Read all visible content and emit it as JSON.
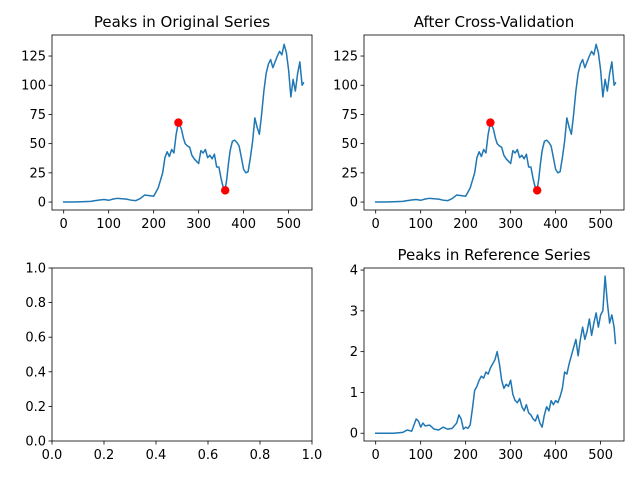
{
  "colors": {
    "series": "#1f77b4",
    "marker": "#ff0000",
    "axes": "#000000",
    "background": "#ffffff"
  },
  "chart_data": [
    {
      "type": "line",
      "title": "Peaks in Original Series",
      "xlabel": "",
      "ylabel": "",
      "xlim": [
        -26,
        552
      ],
      "ylim": [
        -6.8,
        143
      ],
      "xticks": [
        0,
        100,
        200,
        300,
        400,
        500
      ],
      "yticks": [
        0,
        25,
        50,
        75,
        100,
        125
      ],
      "grid": false,
      "series": [
        {
          "x": [
            0,
            20,
            40,
            60,
            70,
            80,
            90,
            100,
            110,
            120,
            130,
            140,
            150,
            160,
            170,
            180,
            190,
            200,
            210,
            220,
            225,
            230,
            235,
            240,
            245,
            250,
            255,
            258,
            262,
            266,
            270,
            275,
            280,
            285,
            290,
            295,
            300,
            305,
            310,
            315,
            320,
            325,
            330,
            335,
            340,
            345,
            350,
            355,
            358,
            362,
            366,
            370,
            375,
            380,
            385,
            390,
            395,
            400,
            405,
            410,
            415,
            420,
            425,
            430,
            435,
            440,
            445,
            450,
            455,
            460,
            465,
            470,
            475,
            480,
            485,
            490,
            495,
            500,
            505,
            510,
            515,
            520,
            525,
            530,
            533
          ],
          "values": [
            0,
            0,
            0.3,
            0.6,
            1.2,
            1.8,
            2.2,
            1.5,
            2.6,
            3.2,
            2.8,
            2.5,
            1.6,
            1.2,
            3.0,
            6.0,
            5.5,
            5.0,
            12,
            25,
            38,
            43,
            39,
            45,
            42,
            58,
            68,
            66,
            62,
            55,
            50,
            48,
            47,
            40,
            37,
            35,
            33,
            44,
            42,
            45,
            38,
            40,
            37,
            41,
            30,
            30,
            20,
            12,
            9,
            18,
            32,
            44,
            52,
            53,
            51,
            48,
            38,
            28,
            25,
            26,
            38,
            52,
            72,
            64,
            58,
            75,
            95,
            110,
            118,
            122,
            115,
            120,
            125,
            129,
            126,
            135,
            128,
            113,
            90,
            105,
            95,
            110,
            120,
            100,
            102
          ],
          "peaks": [
            {
              "x": 255,
              "y": 68
            },
            {
              "x": 359,
              "y": 10
            }
          ]
        }
      ]
    },
    {
      "type": "line",
      "title": "After Cross-Validation",
      "xlabel": "",
      "ylabel": "",
      "xlim": [
        -26,
        552
      ],
      "ylim": [
        -6.8,
        143
      ],
      "xticks": [
        0,
        100,
        200,
        300,
        400,
        500
      ],
      "yticks": [
        0,
        25,
        50,
        75,
        100,
        125
      ],
      "grid": false,
      "series": [
        {
          "x": [
            0,
            20,
            40,
            60,
            70,
            80,
            90,
            100,
            110,
            120,
            130,
            140,
            150,
            160,
            170,
            180,
            190,
            200,
            210,
            220,
            225,
            230,
            235,
            240,
            245,
            250,
            255,
            258,
            262,
            266,
            270,
            275,
            280,
            285,
            290,
            295,
            300,
            305,
            310,
            315,
            320,
            325,
            330,
            335,
            340,
            345,
            350,
            355,
            358,
            362,
            366,
            370,
            375,
            380,
            385,
            390,
            395,
            400,
            405,
            410,
            415,
            420,
            425,
            430,
            435,
            440,
            445,
            450,
            455,
            460,
            465,
            470,
            475,
            480,
            485,
            490,
            495,
            500,
            505,
            510,
            515,
            520,
            525,
            530,
            533
          ],
          "values": [
            0,
            0,
            0.3,
            0.6,
            1.2,
            1.8,
            2.2,
            1.5,
            2.6,
            3.2,
            2.8,
            2.5,
            1.6,
            1.2,
            3.0,
            6.0,
            5.5,
            5.0,
            12,
            25,
            38,
            43,
            39,
            45,
            42,
            58,
            68,
            66,
            62,
            55,
            50,
            48,
            47,
            40,
            37,
            35,
            33,
            44,
            42,
            45,
            38,
            40,
            37,
            41,
            30,
            30,
            20,
            12,
            9,
            18,
            32,
            44,
            52,
            53,
            51,
            48,
            38,
            28,
            25,
            26,
            38,
            52,
            72,
            64,
            58,
            75,
            95,
            110,
            118,
            122,
            115,
            120,
            125,
            129,
            126,
            135,
            128,
            113,
            90,
            105,
            95,
            110,
            120,
            100,
            102
          ],
          "peaks": [
            {
              "x": 255,
              "y": 68
            },
            {
              "x": 359,
              "y": 10
            }
          ]
        }
      ]
    },
    {
      "type": "line",
      "title": "",
      "xlabel": "",
      "ylabel": "",
      "xlim": [
        0,
        1
      ],
      "ylim": [
        0,
        1
      ],
      "xticks": [
        0,
        0.2,
        0.4,
        0.6,
        0.8,
        1
      ],
      "yticks": [
        0,
        0.2,
        0.4,
        0.6,
        0.8,
        1
      ],
      "xticklabels": [
        "0.0",
        "0.2",
        "0.4",
        "0.6",
        "0.8",
        "1.0"
      ],
      "yticklabels": [
        "0.0",
        "0.2",
        "0.4",
        "0.6",
        "0.8",
        "1.0"
      ],
      "grid": false,
      "series": []
    },
    {
      "type": "line",
      "title": "Peaks in Reference Series",
      "xlabel": "",
      "ylabel": "",
      "xlim": [
        -26,
        552
      ],
      "ylim": [
        -0.19,
        4.05
      ],
      "xticks": [
        0,
        100,
        200,
        300,
        400,
        500
      ],
      "yticks": [
        0,
        1,
        2,
        3,
        4
      ],
      "grid": false,
      "series": [
        {
          "x": [
            0,
            20,
            40,
            60,
            70,
            80,
            85,
            90,
            95,
            100,
            105,
            110,
            120,
            130,
            140,
            150,
            160,
            170,
            180,
            185,
            190,
            195,
            200,
            205,
            210,
            215,
            220,
            225,
            230,
            235,
            240,
            245,
            250,
            255,
            260,
            265,
            270,
            275,
            280,
            285,
            290,
            295,
            300,
            305,
            310,
            315,
            320,
            325,
            330,
            335,
            340,
            345,
            350,
            355,
            360,
            365,
            370,
            375,
            380,
            385,
            390,
            395,
            400,
            405,
            410,
            415,
            420,
            425,
            430,
            435,
            440,
            445,
            450,
            455,
            460,
            465,
            470,
            475,
            480,
            485,
            490,
            495,
            500,
            505,
            510,
            515,
            520,
            525,
            530,
            533
          ],
          "values": [
            0,
            0,
            0,
            0.02,
            0.08,
            0.05,
            0.2,
            0.35,
            0.3,
            0.15,
            0.25,
            0.18,
            0.2,
            0.1,
            0.08,
            0.15,
            0.1,
            0.12,
            0.25,
            0.45,
            0.35,
            0.1,
            0.15,
            0.12,
            0.2,
            0.6,
            1.05,
            1.15,
            1.3,
            1.4,
            1.35,
            1.5,
            1.45,
            1.6,
            1.7,
            1.8,
            2.0,
            1.7,
            1.3,
            1.1,
            1.2,
            1.15,
            1.3,
            0.95,
            0.8,
            0.75,
            0.85,
            0.65,
            0.55,
            0.7,
            0.5,
            0.45,
            0.35,
            0.3,
            0.45,
            0.25,
            0.15,
            0.45,
            0.65,
            0.55,
            0.8,
            0.7,
            0.8,
            0.75,
            0.9,
            1.1,
            1.5,
            1.45,
            1.7,
            1.9,
            2.1,
            2.3,
            1.9,
            2.3,
            2.6,
            2.3,
            2.5,
            2.8,
            2.4,
            2.7,
            2.95,
            2.6,
            2.9,
            3.0,
            3.85,
            3.2,
            2.7,
            2.9,
            2.6,
            2.2
          ]
        }
      ]
    }
  ]
}
